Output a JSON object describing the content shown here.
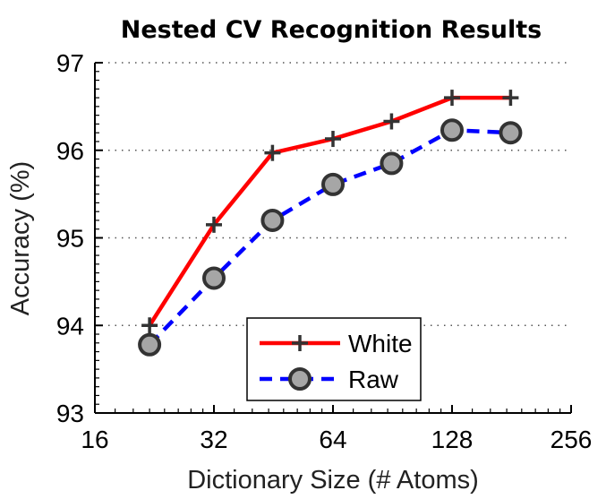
{
  "chart_data": {
    "type": "line",
    "title": "Nested CV Recognition Results",
    "xlabel": "Dictionary Size (# Atoms)",
    "ylabel": "Accuracy (%)",
    "x_scale": "log2",
    "xlim": [
      16,
      256
    ],
    "ylim": [
      93,
      97
    ],
    "x_ticks": [
      16,
      32,
      64,
      128,
      256
    ],
    "y_ticks": [
      93,
      94,
      95,
      96,
      97
    ],
    "x_tick_labels": [
      "16",
      "32",
      "64",
      "128",
      "256"
    ],
    "y_tick_labels": [
      "93",
      "94",
      "95",
      "96",
      "97"
    ],
    "grid": "horizontal dotted",
    "legend_position": "lower-right",
    "series": [
      {
        "name": "White",
        "color": "#ff0000",
        "line_style": "solid",
        "marker": "plus",
        "x": [
          22,
          32,
          45,
          64,
          90,
          128,
          180
        ],
        "y": [
          94.0,
          95.15,
          95.97,
          96.13,
          96.33,
          96.6,
          96.6
        ]
      },
      {
        "name": "Raw",
        "color": "#0000ff",
        "line_style": "dashed",
        "marker": "circle",
        "x": [
          22,
          32,
          45,
          64,
          90,
          128,
          180
        ],
        "y": [
          93.78,
          94.54,
          95.2,
          95.61,
          95.85,
          96.23,
          96.2
        ]
      }
    ]
  }
}
